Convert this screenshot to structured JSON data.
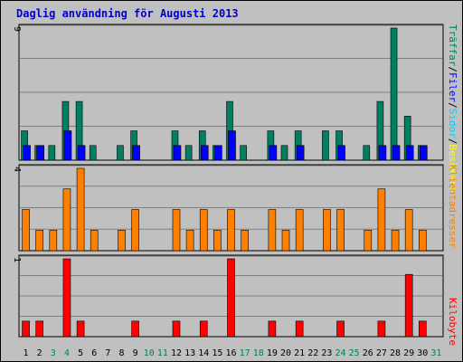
{
  "title": "Daglig användning för Augusti 2013",
  "colors": {
    "traffar": "#008060",
    "filer": "#0000ff",
    "besokare": "#ffff00",
    "platser": "#00ccff",
    "klientadresser": "#ff8000",
    "kilobyte": "#ff0000",
    "grid": "#808080",
    "weekday_label": "#000000",
    "weekend_label": "#00805c"
  },
  "chart_data": [
    {
      "type": "bar",
      "panel": "top",
      "categories": [
        "1",
        "2",
        "3",
        "4",
        "5",
        "6",
        "7",
        "8",
        "9",
        "10",
        "11",
        "12",
        "13",
        "14",
        "15",
        "16",
        "17",
        "18",
        "19",
        "20",
        "21",
        "22",
        "23",
        "24",
        "25",
        "26",
        "27",
        "28",
        "29",
        "30",
        "31"
      ],
      "weekend_days": [
        "3",
        "4",
        "10",
        "11",
        "17",
        "18",
        "24",
        "25",
        "31"
      ],
      "y_tick_label": "9",
      "ylim": [
        0,
        9
      ],
      "legend": [
        "Träffar",
        "/",
        "Filer",
        "/",
        "Sidor",
        "/",
        "Besökare"
      ],
      "series": [
        {
          "name": "Träffar",
          "values": [
            2,
            1,
            1,
            4,
            4,
            1,
            0,
            1,
            2,
            0,
            0,
            2,
            1,
            2,
            1,
            4,
            1,
            0,
            2,
            1,
            2,
            0,
            2,
            2,
            0,
            1,
            4,
            9,
            3,
            1,
            0
          ]
        },
        {
          "name": "Filer",
          "values": [
            1,
            1,
            0,
            2,
            1,
            0,
            0,
            0,
            1,
            0,
            0,
            1,
            0,
            1,
            1,
            2,
            0,
            0,
            1,
            0,
            1,
            0,
            0,
            1,
            0,
            0,
            1,
            1,
            1,
            1,
            0
          ]
        }
      ]
    },
    {
      "type": "bar",
      "panel": "middle",
      "categories": [
        "1",
        "2",
        "3",
        "4",
        "5",
        "6",
        "7",
        "8",
        "9",
        "10",
        "11",
        "12",
        "13",
        "14",
        "15",
        "16",
        "17",
        "18",
        "19",
        "20",
        "21",
        "22",
        "23",
        "24",
        "25",
        "26",
        "27",
        "28",
        "29",
        "30",
        "31"
      ],
      "y_tick_label": "4",
      "ylim": [
        0,
        4
      ],
      "legend": [
        "Klientadresser"
      ],
      "series": [
        {
          "name": "Klientadresser",
          "values": [
            2,
            1,
            1,
            3,
            4,
            1,
            0,
            1,
            2,
            0,
            0,
            2,
            1,
            2,
            1,
            2,
            1,
            0,
            2,
            1,
            2,
            0,
            2,
            2,
            0,
            1,
            3,
            1,
            2,
            1,
            0
          ]
        }
      ]
    },
    {
      "type": "bar",
      "panel": "bottom",
      "categories": [
        "1",
        "2",
        "3",
        "4",
        "5",
        "6",
        "7",
        "8",
        "9",
        "10",
        "11",
        "12",
        "13",
        "14",
        "15",
        "16",
        "17",
        "18",
        "19",
        "20",
        "21",
        "22",
        "23",
        "24",
        "25",
        "26",
        "27",
        "28",
        "29",
        "30",
        "31"
      ],
      "y_tick_label": "1",
      "ylim": [
        0,
        1
      ],
      "legend": [
        "Kilobyte"
      ],
      "series": [
        {
          "name": "Kilobyte",
          "values": [
            0.2,
            0.2,
            0,
            1,
            0.2,
            0,
            0,
            0,
            0.2,
            0,
            0,
            0.2,
            0,
            0.2,
            0,
            1,
            0,
            0,
            0.2,
            0,
            0.2,
            0,
            0,
            0.2,
            0,
            0,
            0.2,
            0,
            0.8,
            0.2,
            0
          ]
        }
      ]
    }
  ]
}
